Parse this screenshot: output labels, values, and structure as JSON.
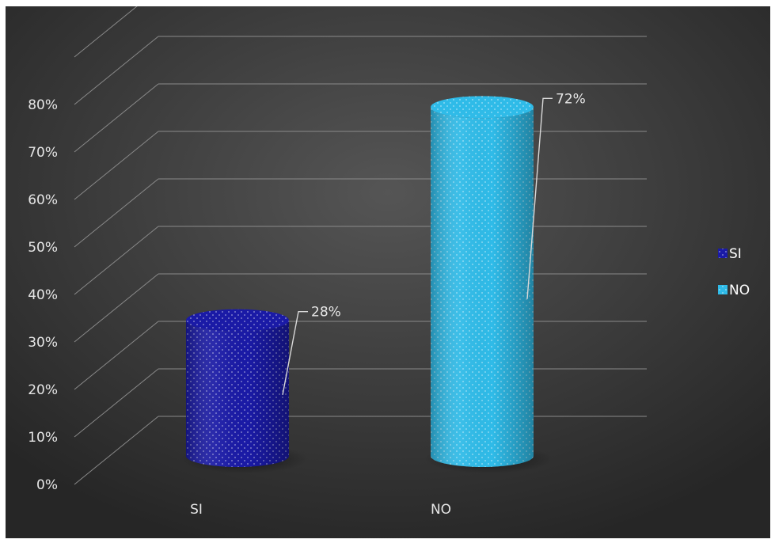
{
  "chart_data": {
    "type": "bar",
    "categories": [
      "SI",
      "NO"
    ],
    "series": [
      {
        "name": "SI",
        "values": [
          0.28,
          null
        ],
        "label": "28%",
        "color": "#1a1aa6"
      },
      {
        "name": "NO",
        "values": [
          null,
          0.72
        ],
        "label": "72%",
        "color": "#2fbbe8"
      }
    ],
    "y_ticks": [
      "0%",
      "10%",
      "20%",
      "30%",
      "40%",
      "50%",
      "60%",
      "70%",
      "80%"
    ],
    "ylim": [
      0,
      0.9
    ],
    "y_format": "percent",
    "legend_position": "right",
    "grid": true,
    "bar_style": "3d-cylinder",
    "background_color": "#3a3a3a",
    "gridline_color": "#8a8a8a",
    "text_color": "#e6e6e6"
  }
}
